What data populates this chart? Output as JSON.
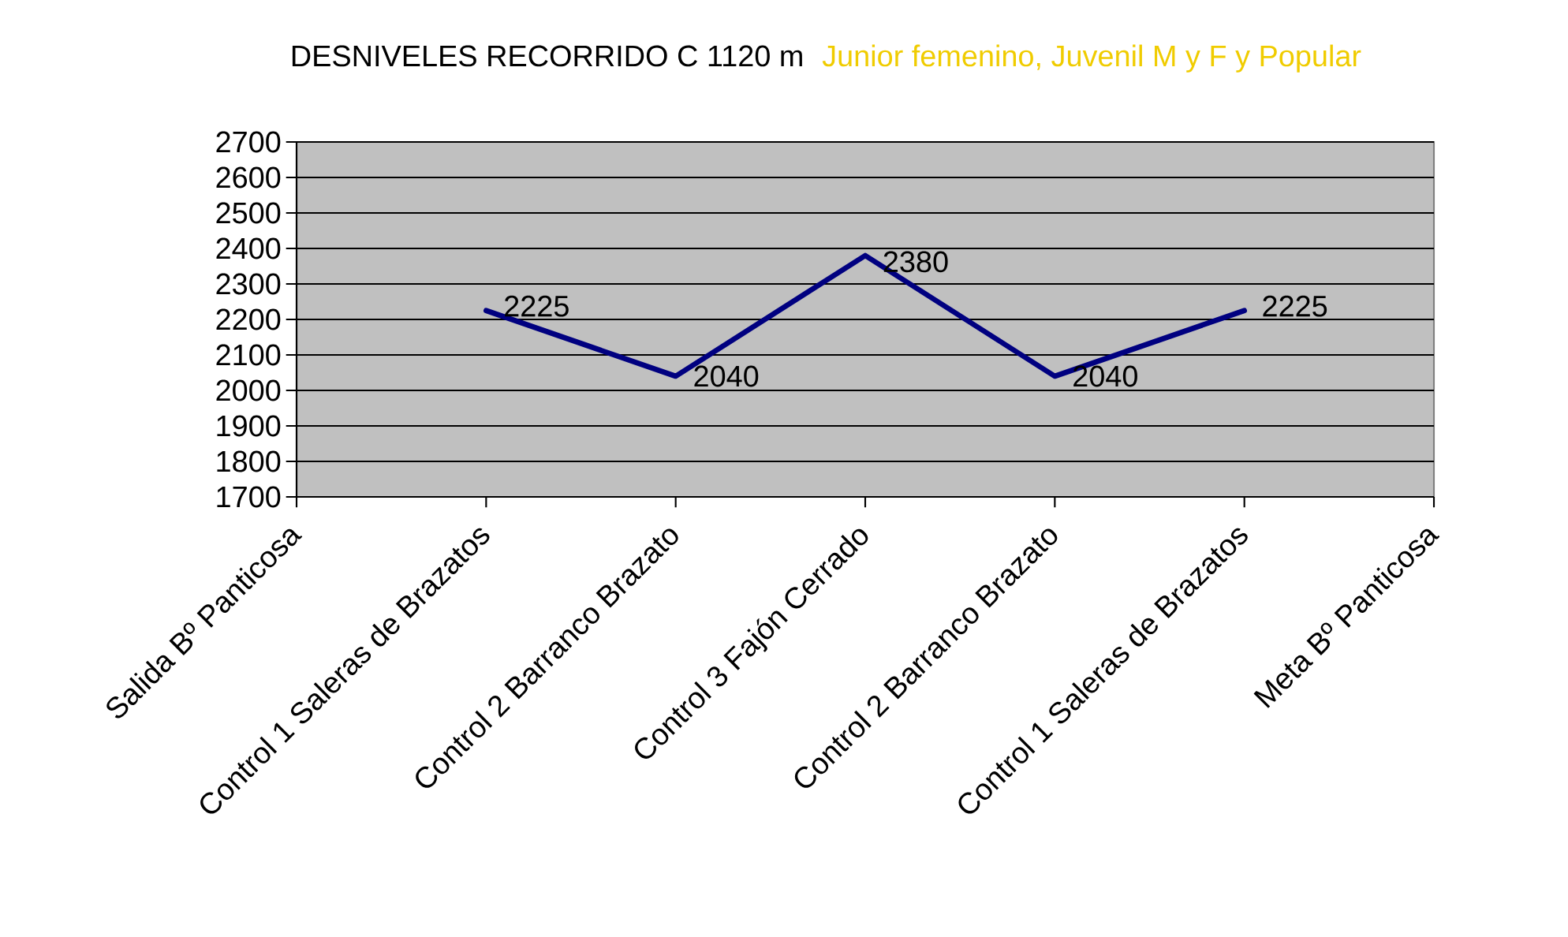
{
  "chart_data": {
    "type": "line",
    "title": "DESNIVELES RECORRIDO C 1120 m",
    "subtitle": "Junior femenino, Juvenil M y F y Popular",
    "categories": [
      "Salida Bº Panticosa",
      "Control 1 Saleras de Brazatos",
      "Control 2 Barranco Brazato",
      "Control 3 Fajón Cerrado",
      "Control 2 Barranco Brazato",
      "Control 1 Saleras de Brazatos",
      "Meta Bº Panticosa"
    ],
    "values": [
      null,
      2225,
      2040,
      2380,
      2040,
      2225,
      null
    ],
    "value_labels": [
      null,
      "2225",
      "2040",
      "2380",
      "2040",
      "2225",
      null
    ],
    "color": "#000080",
    "marker": "none",
    "line_style": "solid",
    "grid": "y",
    "ylim": [
      1700,
      2700
    ],
    "yticks": [
      1700,
      1800,
      1900,
      2000,
      2100,
      2200,
      2300,
      2400,
      2500,
      2600,
      2700
    ]
  }
}
